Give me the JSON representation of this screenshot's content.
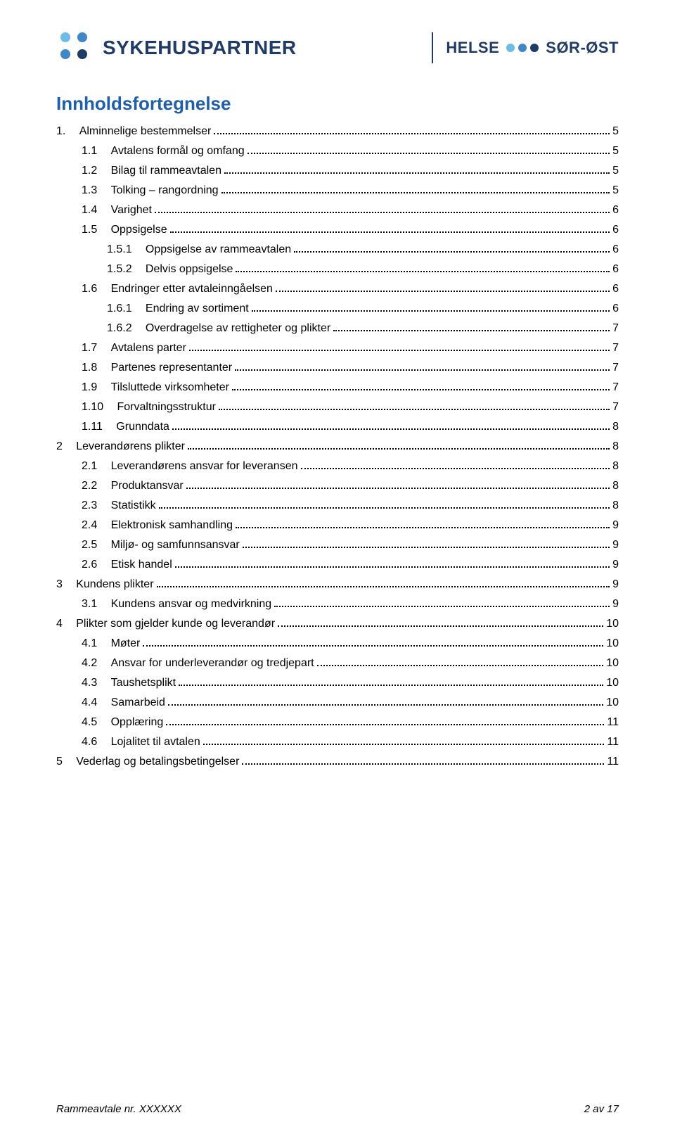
{
  "colors": {
    "brand_navy": "#1f3b66",
    "brand_light": "#6bbde6",
    "brand_mid": "#3f87c7",
    "text": "#000000",
    "toc_title": "#1f5ea8",
    "divider": "#1f3b66"
  },
  "header": {
    "left_brand": "SYKEHUSPARTNER",
    "right_brand_a": "HELSE",
    "right_brand_b": "SØR-ØST",
    "left_brand_fontsize": 28,
    "right_brand_fontsize": 22
  },
  "toc_title": "Innholdsfortegnelse",
  "toc": [
    {
      "level": 1,
      "num": "1.",
      "label": "Alminnelige bestemmelser",
      "page": "5"
    },
    {
      "level": 2,
      "num": "1.1",
      "label": "Avtalens formål og omfang",
      "page": "5"
    },
    {
      "level": 2,
      "num": "1.2",
      "label": "Bilag til rammeavtalen",
      "page": "5"
    },
    {
      "level": 2,
      "num": "1.3",
      "label": "Tolking – rangordning",
      "page": "5"
    },
    {
      "level": 2,
      "num": "1.4",
      "label": "Varighet",
      "page": "6"
    },
    {
      "level": 2,
      "num": "1.5",
      "label": "Oppsigelse",
      "page": "6"
    },
    {
      "level": 3,
      "num": "1.5.1",
      "label": "Oppsigelse av rammeavtalen",
      "page": "6"
    },
    {
      "level": 3,
      "num": "1.5.2",
      "label": "Delvis oppsigelse",
      "page": "6"
    },
    {
      "level": 2,
      "num": "1.6",
      "label": "Endringer etter avtaleinngåelsen",
      "page": "6"
    },
    {
      "level": 3,
      "num": "1.6.1",
      "label": "Endring av sortiment",
      "page": "6"
    },
    {
      "level": 3,
      "num": "1.6.2",
      "label": "Overdragelse av rettigheter og plikter",
      "page": "7"
    },
    {
      "level": 2,
      "num": "1.7",
      "label": "Avtalens parter",
      "page": "7"
    },
    {
      "level": 2,
      "num": "1.8",
      "label": "Partenes representanter",
      "page": "7"
    },
    {
      "level": 2,
      "num": "1.9",
      "label": "Tilsluttede virksomheter",
      "page": "7"
    },
    {
      "level": 2,
      "num": "1.10",
      "label": "Forvaltningsstruktur",
      "page": "7"
    },
    {
      "level": 2,
      "num": "1.11",
      "label": "Grunndata",
      "page": "8"
    },
    {
      "level": 1,
      "num": "2",
      "label": "Leverandørens plikter",
      "page": "8"
    },
    {
      "level": 2,
      "num": "2.1",
      "label": "Leverandørens ansvar for leveransen",
      "page": "8"
    },
    {
      "level": 2,
      "num": "2.2",
      "label": "Produktansvar",
      "page": "8"
    },
    {
      "level": 2,
      "num": "2.3",
      "label": "Statistikk",
      "page": "8"
    },
    {
      "level": 2,
      "num": "2.4",
      "label": "Elektronisk samhandling",
      "page": "9"
    },
    {
      "level": 2,
      "num": "2.5",
      "label": "Miljø- og samfunnsansvar",
      "page": "9"
    },
    {
      "level": 2,
      "num": "2.6",
      "label": "Etisk handel",
      "page": "9"
    },
    {
      "level": 1,
      "num": "3",
      "label": "Kundens plikter",
      "page": "9"
    },
    {
      "level": 2,
      "num": "3.1",
      "label": "Kundens ansvar og medvirkning",
      "page": "9"
    },
    {
      "level": 1,
      "num": "4",
      "label": "Plikter som gjelder kunde og leverandør",
      "page": "10"
    },
    {
      "level": 2,
      "num": "4.1",
      "label": "Møter",
      "page": "10"
    },
    {
      "level": 2,
      "num": "4.2",
      "label": "Ansvar for underleverandør og tredjepart",
      "page": "10"
    },
    {
      "level": 2,
      "num": "4.3",
      "label": "Taushetsplikt",
      "page": "10"
    },
    {
      "level": 2,
      "num": "4.4",
      "label": "Samarbeid",
      "page": "10"
    },
    {
      "level": 2,
      "num": "4.5",
      "label": "Opplæring",
      "page": "11"
    },
    {
      "level": 2,
      "num": "4.6",
      "label": "Lojalitet til avtalen",
      "page": "11"
    },
    {
      "level": 1,
      "num": "5",
      "label": "Vederlag og betalingsbetingelser",
      "page": "11"
    }
  ],
  "footer": {
    "left": "Rammeavtale nr. XXXXXX",
    "right": "2 av 17"
  }
}
